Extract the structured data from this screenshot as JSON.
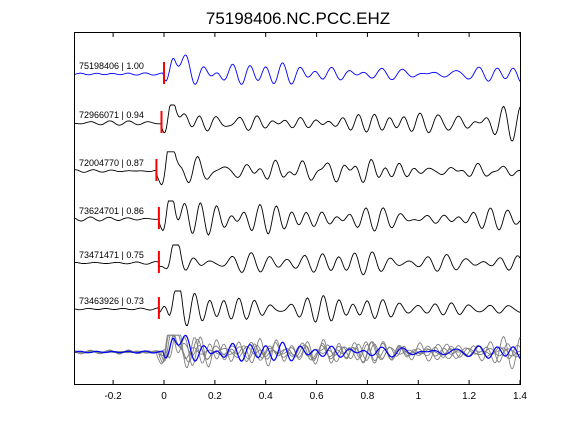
{
  "chart_data": {
    "type": "line",
    "title": "75198406.NC.PCC.EHZ",
    "xlabel": "",
    "ylabel": "",
    "xlim": [
      -0.35,
      1.4
    ],
    "x_ticks": [
      -0.2,
      0,
      0.2,
      0.4,
      0.6,
      0.8,
      1,
      1.2,
      1.4
    ],
    "x_tick_labels": [
      "-0.2",
      "0",
      "0.2",
      "0.4",
      "0.6",
      "0.8",
      "1",
      "1.2",
      "1.4"
    ],
    "y_ticks_shown": false,
    "grid": false,
    "colors": {
      "reference": "#0000ff",
      "traces": "#000000",
      "overlay": "#808080",
      "pick": "#ff0000",
      "axes": "#000000"
    },
    "series": [
      {
        "name": "75198406",
        "coefficient": "1.00",
        "label": "75198406 | 1.00",
        "pick_time": 0.0,
        "role": "reference"
      },
      {
        "name": "72966071",
        "coefficient": "0.94",
        "label": "72966071 | 0.94",
        "pick_time": -0.01,
        "role": "trace"
      },
      {
        "name": "72004770",
        "coefficient": "0.87",
        "label": "72004770 | 0.87",
        "pick_time": -0.03,
        "role": "trace"
      },
      {
        "name": "73624701",
        "coefficient": "0.86",
        "label": "73624701 | 0.86",
        "pick_time": -0.02,
        "role": "trace"
      },
      {
        "name": "73471471",
        "coefficient": "0.75",
        "label": "73471471 | 0.75",
        "pick_time": -0.02,
        "role": "trace"
      },
      {
        "name": "73463926",
        "coefficient": "0.73",
        "label": "73463926 | 0.73",
        "pick_time": -0.02,
        "role": "trace"
      }
    ],
    "overlay": {
      "description_visible": false,
      "includes_all_traces": true
    }
  }
}
